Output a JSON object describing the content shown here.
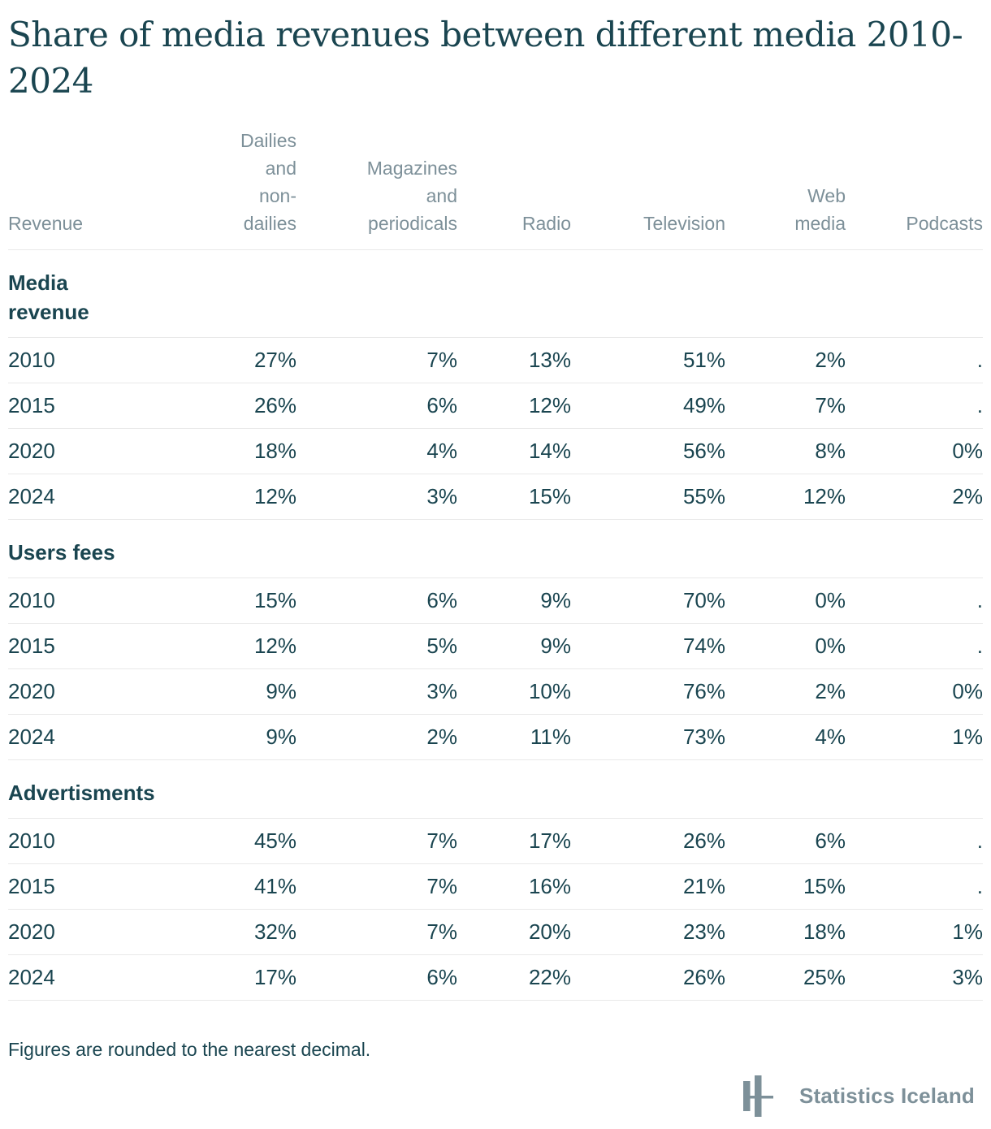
{
  "title": "Share of media revenues between different media 2010-2024",
  "table": {
    "columns": [
      {
        "label": "Revenue"
      },
      {
        "label": "Dailies\nand\nnon-\ndailies"
      },
      {
        "label": "Magazines\nand\nperiodicals"
      },
      {
        "label": "Radio"
      },
      {
        "label": "Television"
      },
      {
        "label": "Web\nmedia"
      },
      {
        "label": "Podcasts"
      }
    ],
    "sections": [
      {
        "label": "Media\nrevenue",
        "rows": [
          {
            "year": "2010",
            "values": [
              "27%",
              "7%",
              "13%",
              "51%",
              "2%",
              "."
            ]
          },
          {
            "year": "2015",
            "values": [
              "26%",
              "6%",
              "12%",
              "49%",
              "7%",
              "."
            ]
          },
          {
            "year": "2020",
            "values": [
              "18%",
              "4%",
              "14%",
              "56%",
              "8%",
              "0%"
            ]
          },
          {
            "year": "2024",
            "values": [
              "12%",
              "3%",
              "15%",
              "55%",
              "12%",
              "2%"
            ]
          }
        ]
      },
      {
        "label": "Users fees",
        "rows": [
          {
            "year": "2010",
            "values": [
              "15%",
              "6%",
              "9%",
              "70%",
              "0%",
              "."
            ]
          },
          {
            "year": "2015",
            "values": [
              "12%",
              "5%",
              "9%",
              "74%",
              "0%",
              "."
            ]
          },
          {
            "year": "2020",
            "values": [
              "9%",
              "3%",
              "10%",
              "76%",
              "2%",
              "0%"
            ]
          },
          {
            "year": "2024",
            "values": [
              "9%",
              "2%",
              "11%",
              "73%",
              "4%",
              "1%"
            ]
          }
        ]
      },
      {
        "label": "Advertisments",
        "rows": [
          {
            "year": "2010",
            "values": [
              "45%",
              "7%",
              "17%",
              "26%",
              "6%",
              "."
            ]
          },
          {
            "year": "2015",
            "values": [
              "41%",
              "7%",
              "16%",
              "21%",
              "15%",
              "."
            ]
          },
          {
            "year": "2020",
            "values": [
              "32%",
              "7%",
              "20%",
              "23%",
              "18%",
              "1%"
            ]
          },
          {
            "year": "2024",
            "values": [
              "17%",
              "6%",
              "22%",
              "26%",
              "25%",
              "3%"
            ]
          }
        ]
      }
    ]
  },
  "footnote": "Figures are rounded to the nearest decimal.",
  "brand": {
    "name": "Statistics Iceland",
    "logo_icon": "statistics-iceland-logo"
  },
  "colors": {
    "text": "#1a4550",
    "muted_header": "#7d9099",
    "row_border": "#e9e9e9",
    "background": "#ffffff"
  },
  "chart_data": {
    "type": "table",
    "title": "Share of media revenues between different media 2010-2024",
    "columns": [
      "Dailies and non-dailies",
      "Magazines and periodicals",
      "Radio",
      "Television",
      "Web media",
      "Podcasts"
    ],
    "unit": "percent",
    "sections": [
      {
        "name": "Media revenue",
        "years": [
          2010,
          2015,
          2020,
          2024
        ],
        "values_pct": [
          [
            27,
            7,
            13,
            51,
            2,
            null
          ],
          [
            26,
            6,
            12,
            49,
            7,
            null
          ],
          [
            18,
            4,
            14,
            56,
            8,
            0
          ],
          [
            12,
            3,
            15,
            55,
            12,
            2
          ]
        ]
      },
      {
        "name": "Users fees",
        "years": [
          2010,
          2015,
          2020,
          2024
        ],
        "values_pct": [
          [
            15,
            6,
            9,
            70,
            0,
            null
          ],
          [
            12,
            5,
            9,
            74,
            0,
            null
          ],
          [
            9,
            3,
            10,
            76,
            2,
            0
          ],
          [
            9,
            2,
            11,
            73,
            4,
            1
          ]
        ]
      },
      {
        "name": "Advertisments",
        "years": [
          2010,
          2015,
          2020,
          2024
        ],
        "values_pct": [
          [
            45,
            7,
            17,
            26,
            6,
            null
          ],
          [
            41,
            7,
            16,
            21,
            15,
            null
          ],
          [
            32,
            7,
            20,
            23,
            18,
            1
          ],
          [
            17,
            6,
            22,
            26,
            25,
            3
          ]
        ]
      }
    ],
    "missing_value_marker": "."
  }
}
